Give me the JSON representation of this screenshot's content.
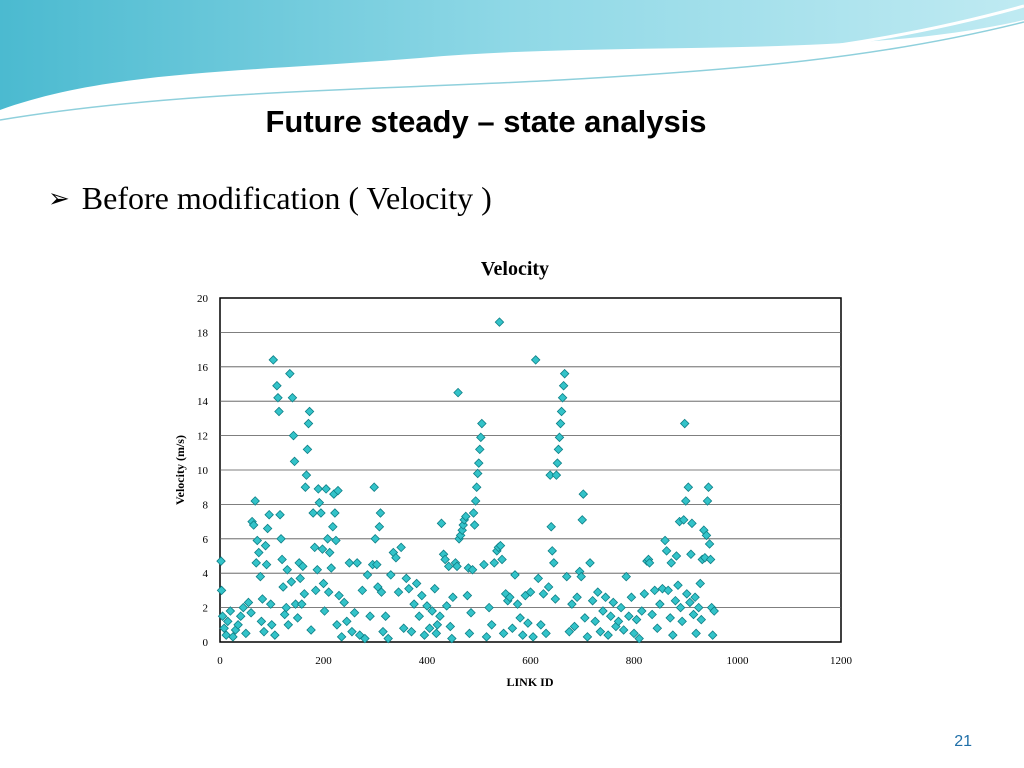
{
  "slide": {
    "title": "Future steady – state analysis",
    "bullet_symbol": "➢",
    "bullet_text": "Before modification ( Velocity )",
    "page_number": "21"
  },
  "colors": {
    "marker_fill": "#33c3c9",
    "marker_stroke": "#0e7f86",
    "header_wave_dark": "#5cc6d8",
    "header_wave_light": "#cdeef4",
    "page_number": "#1f6fa8"
  },
  "chart_data": {
    "type": "scatter",
    "title": "Velocity",
    "xlabel": "LINK ID",
    "ylabel": "Velocity (m/s)",
    "xlim": [
      0,
      1200
    ],
    "ylim": [
      0,
      20
    ],
    "xticks": [
      0,
      200,
      400,
      600,
      800,
      1000,
      1200
    ],
    "yticks": [
      0,
      2,
      4,
      6,
      8,
      10,
      12,
      14,
      16,
      18,
      20
    ],
    "grid": "horizontal",
    "legend": "none",
    "marker": "diamond",
    "points": [
      [
        2,
        4.7
      ],
      [
        3,
        3.0
      ],
      [
        5,
        1.5
      ],
      [
        8,
        0.8
      ],
      [
        12,
        0.4
      ],
      [
        15,
        1.2
      ],
      [
        20,
        1.8
      ],
      [
        25,
        0.3
      ],
      [
        30,
        0.7
      ],
      [
        35,
        1.0
      ],
      [
        40,
        1.5
      ],
      [
        45,
        2.0
      ],
      [
        50,
        0.5
      ],
      [
        55,
        2.3
      ],
      [
        60,
        1.7
      ],
      [
        62,
        7.0
      ],
      [
        65,
        6.8
      ],
      [
        68,
        8.2
      ],
      [
        70,
        4.6
      ],
      [
        72,
        5.9
      ],
      [
        75,
        5.2
      ],
      [
        78,
        3.8
      ],
      [
        80,
        1.2
      ],
      [
        82,
        2.5
      ],
      [
        85,
        0.6
      ],
      [
        88,
        5.6
      ],
      [
        90,
        4.5
      ],
      [
        92,
        6.6
      ],
      [
        95,
        7.4
      ],
      [
        98,
        2.2
      ],
      [
        100,
        1.0
      ],
      [
        103,
        16.4
      ],
      [
        106,
        0.4
      ],
      [
        110,
        14.9
      ],
      [
        112,
        14.2
      ],
      [
        114,
        13.4
      ],
      [
        116,
        7.4
      ],
      [
        118,
        6.0
      ],
      [
        120,
        4.8
      ],
      [
        122,
        3.2
      ],
      [
        125,
        1.6
      ],
      [
        128,
        2.0
      ],
      [
        130,
        4.2
      ],
      [
        132,
        1.0
      ],
      [
        135,
        15.6
      ],
      [
        138,
        3.5
      ],
      [
        140,
        14.2
      ],
      [
        142,
        12.0
      ],
      [
        144,
        10.5
      ],
      [
        146,
        2.2
      ],
      [
        150,
        1.4
      ],
      [
        153,
        4.6
      ],
      [
        155,
        3.7
      ],
      [
        158,
        2.2
      ],
      [
        160,
        4.4
      ],
      [
        163,
        2.8
      ],
      [
        165,
        9.0
      ],
      [
        167,
        9.7
      ],
      [
        169,
        11.2
      ],
      [
        171,
        12.7
      ],
      [
        173,
        13.4
      ],
      [
        176,
        0.7
      ],
      [
        180,
        7.5
      ],
      [
        183,
        5.5
      ],
      [
        185,
        3.0
      ],
      [
        188,
        4.2
      ],
      [
        190,
        8.9
      ],
      [
        192,
        8.1
      ],
      [
        195,
        7.5
      ],
      [
        198,
        5.4
      ],
      [
        200,
        3.4
      ],
      [
        202,
        1.8
      ],
      [
        205,
        8.9
      ],
      [
        208,
        6.0
      ],
      [
        210,
        2.9
      ],
      [
        212,
        5.2
      ],
      [
        215,
        4.3
      ],
      [
        218,
        6.7
      ],
      [
        220,
        8.6
      ],
      [
        222,
        7.5
      ],
      [
        224,
        5.9
      ],
      [
        226,
        1.0
      ],
      [
        228,
        8.8
      ],
      [
        230,
        2.7
      ],
      [
        235,
        0.3
      ],
      [
        240,
        2.3
      ],
      [
        245,
        1.2
      ],
      [
        250,
        4.6
      ],
      [
        255,
        0.6
      ],
      [
        260,
        1.7
      ],
      [
        265,
        4.6
      ],
      [
        270,
        0.4
      ],
      [
        275,
        3.0
      ],
      [
        280,
        0.2
      ],
      [
        285,
        3.9
      ],
      [
        290,
        1.5
      ],
      [
        295,
        4.5
      ],
      [
        298,
        9.0
      ],
      [
        300,
        6.0
      ],
      [
        303,
        4.5
      ],
      [
        305,
        3.2
      ],
      [
        308,
        6.7
      ],
      [
        310,
        7.5
      ],
      [
        312,
        2.9
      ],
      [
        315,
        0.6
      ],
      [
        320,
        1.5
      ],
      [
        325,
        0.2
      ],
      [
        330,
        3.9
      ],
      [
        335,
        5.2
      ],
      [
        340,
        4.9
      ],
      [
        345,
        2.9
      ],
      [
        350,
        5.5
      ],
      [
        355,
        0.8
      ],
      [
        360,
        3.7
      ],
      [
        365,
        3.1
      ],
      [
        370,
        0.6
      ],
      [
        375,
        2.2
      ],
      [
        380,
        3.4
      ],
      [
        385,
        1.5
      ],
      [
        390,
        2.7
      ],
      [
        395,
        0.4
      ],
      [
        400,
        2.1
      ],
      [
        405,
        0.8
      ],
      [
        410,
        1.8
      ],
      [
        415,
        3.1
      ],
      [
        418,
        0.5
      ],
      [
        420,
        1.0
      ],
      [
        425,
        1.5
      ],
      [
        428,
        6.9
      ],
      [
        432,
        5.1
      ],
      [
        435,
        4.8
      ],
      [
        438,
        2.1
      ],
      [
        442,
        4.4
      ],
      [
        445,
        0.9
      ],
      [
        448,
        0.2
      ],
      [
        450,
        2.6
      ],
      [
        455,
        4.6
      ],
      [
        458,
        4.4
      ],
      [
        460,
        14.5
      ],
      [
        462,
        6.0
      ],
      [
        465,
        6.2
      ],
      [
        468,
        6.5
      ],
      [
        470,
        6.8
      ],
      [
        472,
        7.1
      ],
      [
        475,
        7.3
      ],
      [
        478,
        2.7
      ],
      [
        480,
        4.3
      ],
      [
        482,
        0.5
      ],
      [
        485,
        1.7
      ],
      [
        488,
        4.2
      ],
      [
        490,
        7.5
      ],
      [
        492,
        6.8
      ],
      [
        494,
        8.2
      ],
      [
        496,
        9.0
      ],
      [
        498,
        9.8
      ],
      [
        500,
        10.4
      ],
      [
        502,
        11.2
      ],
      [
        504,
        11.9
      ],
      [
        506,
        12.7
      ],
      [
        510,
        4.5
      ],
      [
        515,
        0.3
      ],
      [
        520,
        2.0
      ],
      [
        525,
        1.0
      ],
      [
        530,
        4.6
      ],
      [
        535,
        5.3
      ],
      [
        538,
        5.5
      ],
      [
        540,
        18.6
      ],
      [
        542,
        5.6
      ],
      [
        545,
        4.8
      ],
      [
        548,
        0.5
      ],
      [
        552,
        2.8
      ],
      [
        556,
        2.4
      ],
      [
        560,
        2.6
      ],
      [
        565,
        0.8
      ],
      [
        570,
        3.9
      ],
      [
        575,
        2.2
      ],
      [
        580,
        1.4
      ],
      [
        585,
        0.4
      ],
      [
        590,
        2.7
      ],
      [
        595,
        1.1
      ],
      [
        600,
        2.9
      ],
      [
        605,
        0.3
      ],
      [
        610,
        16.4
      ],
      [
        615,
        3.7
      ],
      [
        620,
        1.0
      ],
      [
        625,
        2.8
      ],
      [
        630,
        0.5
      ],
      [
        635,
        3.2
      ],
      [
        638,
        9.7
      ],
      [
        640,
        6.7
      ],
      [
        642,
        5.3
      ],
      [
        645,
        4.6
      ],
      [
        648,
        2.5
      ],
      [
        650,
        9.7
      ],
      [
        652,
        10.4
      ],
      [
        654,
        11.2
      ],
      [
        656,
        11.9
      ],
      [
        658,
        12.7
      ],
      [
        660,
        13.4
      ],
      [
        662,
        14.2
      ],
      [
        664,
        14.9
      ],
      [
        666,
        15.6
      ],
      [
        670,
        3.8
      ],
      [
        675,
        0.6
      ],
      [
        680,
        2.2
      ],
      [
        685,
        0.9
      ],
      [
        690,
        2.6
      ],
      [
        695,
        4.1
      ],
      [
        698,
        3.8
      ],
      [
        700,
        7.1
      ],
      [
        702,
        8.6
      ],
      [
        705,
        1.4
      ],
      [
        710,
        0.3
      ],
      [
        715,
        4.6
      ],
      [
        720,
        2.4
      ],
      [
        725,
        1.2
      ],
      [
        730,
        2.9
      ],
      [
        735,
        0.6
      ],
      [
        740,
        1.8
      ],
      [
        745,
        2.6
      ],
      [
        750,
        0.4
      ],
      [
        755,
        1.5
      ],
      [
        760,
        2.3
      ],
      [
        765,
        0.9
      ],
      [
        770,
        1.2
      ],
      [
        775,
        2.0
      ],
      [
        780,
        0.7
      ],
      [
        785,
        3.8
      ],
      [
        790,
        1.5
      ],
      [
        795,
        2.6
      ],
      [
        800,
        0.5
      ],
      [
        805,
        1.3
      ],
      [
        810,
        0.2
      ],
      [
        815,
        1.8
      ],
      [
        820,
        2.8
      ],
      [
        825,
        4.7
      ],
      [
        828,
        4.8
      ],
      [
        830,
        4.6
      ],
      [
        835,
        1.6
      ],
      [
        840,
        3.0
      ],
      [
        845,
        0.8
      ],
      [
        850,
        2.2
      ],
      [
        855,
        3.1
      ],
      [
        860,
        5.9
      ],
      [
        863,
        5.3
      ],
      [
        866,
        3.0
      ],
      [
        870,
        1.4
      ],
      [
        872,
        4.6
      ],
      [
        875,
        0.4
      ],
      [
        880,
        2.4
      ],
      [
        882,
        5.0
      ],
      [
        885,
        3.3
      ],
      [
        888,
        7.0
      ],
      [
        890,
        2.0
      ],
      [
        893,
        1.2
      ],
      [
        896,
        7.1
      ],
      [
        898,
        12.7
      ],
      [
        900,
        8.2
      ],
      [
        902,
        2.8
      ],
      [
        905,
        9.0
      ],
      [
        908,
        2.3
      ],
      [
        910,
        5.1
      ],
      [
        912,
        6.9
      ],
      [
        915,
        1.6
      ],
      [
        918,
        2.6
      ],
      [
        920,
        0.5
      ],
      [
        925,
        2.0
      ],
      [
        928,
        3.4
      ],
      [
        930,
        1.3
      ],
      [
        932,
        4.8
      ],
      [
        935,
        6.5
      ],
      [
        937,
        4.9
      ],
      [
        940,
        6.2
      ],
      [
        942,
        8.2
      ],
      [
        944,
        9.0
      ],
      [
        946,
        5.7
      ],
      [
        948,
        4.8
      ],
      [
        950,
        2.0
      ],
      [
        952,
        0.4
      ],
      [
        955,
        1.8
      ]
    ]
  }
}
